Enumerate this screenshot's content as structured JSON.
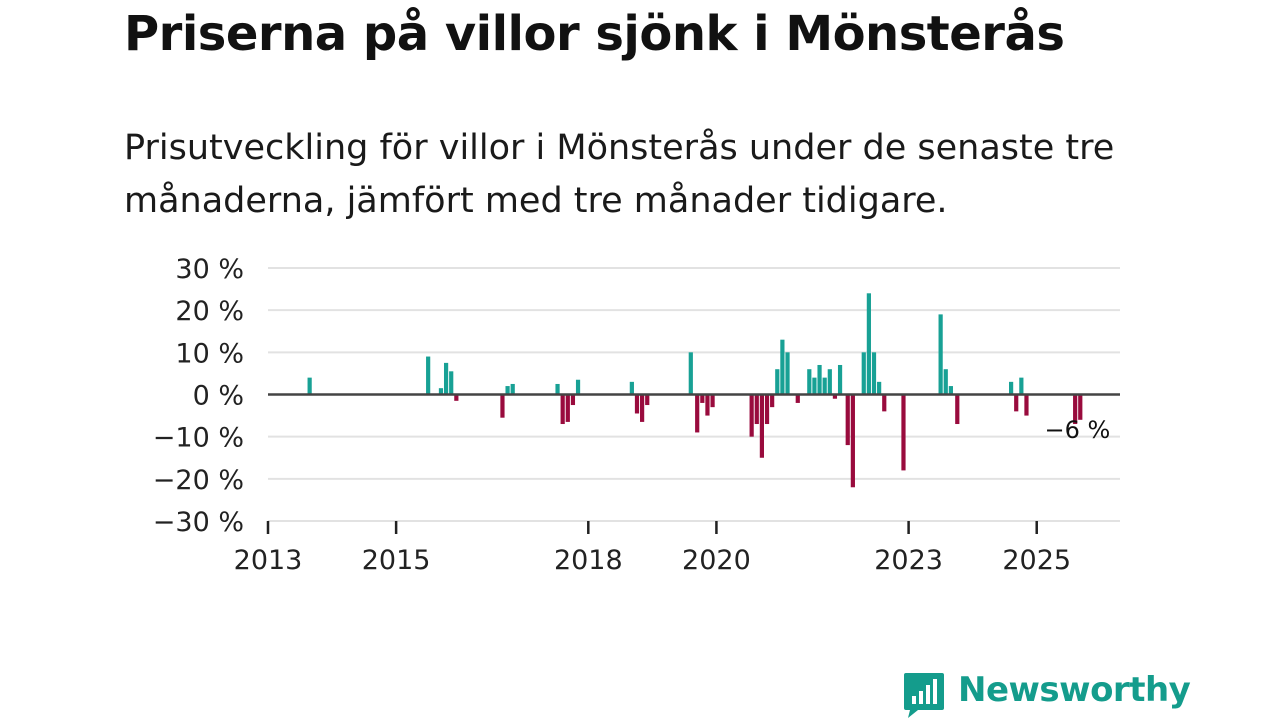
{
  "header": {
    "title": "Priserna på villor sjönk i Mönsterås",
    "subtitle": "Prisutveckling för villor i Mönsterås under de senaste tre månaderna, jämfört med tre månader tidigare."
  },
  "colors": {
    "positive": "#18a195",
    "negative": "#990b3d",
    "grid": "#e2e2e2",
    "zero_line": "#444444",
    "text": "#222222",
    "brand": "#149c8c"
  },
  "brand": {
    "name": "Newsworthy",
    "icon": "bar-chart-speech-bubble-icon"
  },
  "chart_data": {
    "type": "bar",
    "title": "Priserna på villor sjönk i Mönsterås",
    "xlabel": "",
    "ylabel": "",
    "ylim": [
      -30,
      30
    ],
    "xlim": [
      2013.0,
      2026.3
    ],
    "yticks": [
      30,
      20,
      10,
      0,
      -10,
      -20,
      -30
    ],
    "ytick_labels": [
      "30 %",
      "20 %",
      "10 %",
      "0 %",
      "−10 %",
      "−20 %",
      "−30 %"
    ],
    "xticks": [
      2013,
      2015,
      2018,
      2020,
      2023,
      2025
    ],
    "xtick_labels": [
      "2013",
      "2015",
      "2018",
      "2020",
      "2023",
      "2025"
    ],
    "last_value_label": "−6 %",
    "x": [
      2013.65,
      2015.5,
      2015.7,
      2015.78,
      2015.86,
      2015.94,
      2016.66,
      2016.74,
      2016.82,
      2017.52,
      2017.6,
      2017.68,
      2017.76,
      2017.84,
      2018.68,
      2018.76,
      2018.84,
      2018.92,
      2019.6,
      2019.7,
      2019.78,
      2019.86,
      2019.94,
      2020.55,
      2020.63,
      2020.71,
      2020.79,
      2020.87,
      2020.95,
      2021.03,
      2021.11,
      2021.27,
      2021.45,
      2021.53,
      2021.61,
      2021.69,
      2021.77,
      2021.85,
      2021.93,
      2022.05,
      2022.13,
      2022.3,
      2022.38,
      2022.46,
      2022.54,
      2022.62,
      2022.92,
      2023.5,
      2023.58,
      2023.66,
      2023.76,
      2024.6,
      2024.68,
      2024.76,
      2024.84,
      2025.6,
      2025.68
    ],
    "values": [
      4,
      9,
      1.5,
      7.5,
      5.5,
      -1.5,
      -5.5,
      2,
      2.5,
      2.5,
      -7,
      -6.5,
      -2.5,
      3.5,
      3,
      -4.5,
      -6.5,
      -2.5,
      10,
      -9,
      -2,
      -5,
      -3,
      -10,
      -7,
      -15,
      -7,
      -3,
      6,
      13,
      10,
      -2,
      6,
      4,
      7,
      4,
      6,
      -1,
      7,
      -12,
      -22,
      10,
      24,
      10,
      3,
      -4,
      -18,
      19,
      6,
      2,
      -7,
      3,
      -4,
      4,
      -5,
      -7,
      -6
    ]
  }
}
